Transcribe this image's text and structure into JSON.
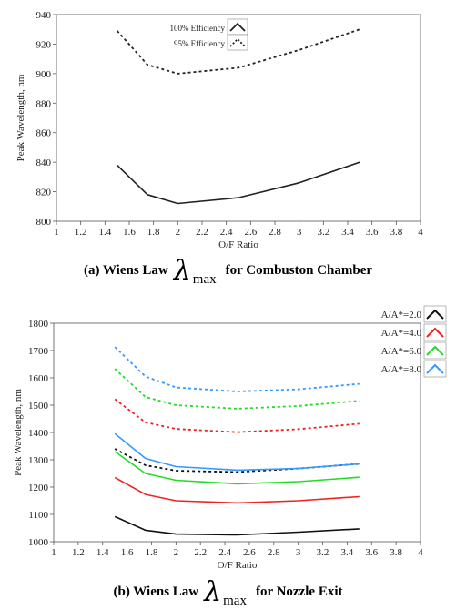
{
  "chart_data": [
    {
      "type": "line",
      "xlabel": "O/F Ratio",
      "ylabel": "Peak Wavelength, nm",
      "xlim": [
        1,
        4
      ],
      "ylim": [
        800,
        940
      ],
      "xticks": [
        "1",
        "1.2",
        "1.4",
        "1.6",
        "1.8",
        "2",
        "2.2",
        "2.4",
        "2.6",
        "2.8",
        "3",
        "3.2",
        "3.4",
        "3.6",
        "3.8",
        "4"
      ],
      "yticks": [
        "800",
        "820",
        "840",
        "860",
        "880",
        "900",
        "920",
        "940"
      ],
      "legend_position": "top-center",
      "caption": {
        "prefix": "(a) Wiens Law",
        "symbol": "λ",
        "subscript": "max",
        "suffix": "for Combuston Chamber"
      },
      "series": [
        {
          "name": "100% Efficiency",
          "color": "#222222",
          "dashed": false,
          "x": [
            1.5,
            1.75,
            2.0,
            2.5,
            3.0,
            3.5
          ],
          "y": [
            838,
            818,
            812,
            816,
            826,
            840
          ]
        },
        {
          "name": "95% Efficiency",
          "color": "#222222",
          "dashed": true,
          "x": [
            1.5,
            1.75,
            2.0,
            2.5,
            3.0,
            3.5
          ],
          "y": [
            929,
            906,
            900,
            904,
            916,
            930
          ]
        }
      ]
    },
    {
      "type": "line",
      "xlabel": "O/F Ratio",
      "ylabel": "Peak Wavelength, nm",
      "xlim": [
        1,
        4
      ],
      "ylim": [
        1000,
        1800
      ],
      "xticks": [
        "1",
        "1.2",
        "1.4",
        "1.6",
        "1.8",
        "2",
        "2.2",
        "2.4",
        "2.6",
        "2.8",
        "3",
        "3.2",
        "3.4",
        "3.6",
        "3.8",
        "4"
      ],
      "yticks": [
        "1000",
        "1100",
        "1200",
        "1300",
        "1400",
        "1500",
        "1600",
        "1700",
        "1800"
      ],
      "legend_position": "top-right",
      "caption": {
        "prefix": "(b) Wiens Law",
        "symbol": "λ",
        "subscript": "max",
        "suffix": "for Nozzle Exit"
      },
      "series": [
        {
          "name": "A/A*=2.0",
          "color": "#111111",
          "dashed": false,
          "x": [
            1.5,
            1.75,
            2.0,
            2.5,
            3.0,
            3.5
          ],
          "y": [
            1092,
            1042,
            1028,
            1025,
            1035,
            1047
          ]
        },
        {
          "name": "",
          "color": "#111111",
          "dashed": true,
          "x": [
            1.5,
            1.75,
            2.0,
            2.5,
            3.0,
            3.5
          ],
          "y": [
            1340,
            1280,
            1260,
            1255,
            1268,
            1285
          ]
        },
        {
          "name": "A/A*=4.0",
          "color": "#ee2222",
          "dashed": false,
          "x": [
            1.5,
            1.75,
            2.0,
            2.5,
            3.0,
            3.5
          ],
          "y": [
            1235,
            1173,
            1150,
            1142,
            1150,
            1165
          ]
        },
        {
          "name": "",
          "color": "#ee2222",
          "dashed": true,
          "x": [
            1.5,
            1.75,
            2.0,
            2.5,
            3.0,
            3.5
          ],
          "y": [
            1522,
            1437,
            1413,
            1401,
            1412,
            1432
          ]
        },
        {
          "name": "A/A*=6.0",
          "color": "#22dd22",
          "dashed": false,
          "x": [
            1.5,
            1.75,
            2.0,
            2.5,
            3.0,
            3.5
          ],
          "y": [
            1330,
            1250,
            1225,
            1212,
            1220,
            1236
          ]
        },
        {
          "name": "",
          "color": "#22dd22",
          "dashed": true,
          "x": [
            1.5,
            1.75,
            2.0,
            2.5,
            3.0,
            3.5
          ],
          "y": [
            1633,
            1530,
            1500,
            1487,
            1497,
            1516
          ]
        },
        {
          "name": "A/A*=8.0",
          "color": "#3399ff",
          "dashed": false,
          "x": [
            1.5,
            1.75,
            2.0,
            2.5,
            3.0,
            3.5
          ],
          "y": [
            1396,
            1305,
            1275,
            1262,
            1268,
            1285
          ]
        },
        {
          "name": "",
          "color": "#3399ff",
          "dashed": true,
          "x": [
            1.5,
            1.75,
            2.0,
            2.5,
            3.0,
            3.5
          ],
          "y": [
            1713,
            1605,
            1565,
            1550,
            1558,
            1578
          ]
        }
      ]
    }
  ]
}
